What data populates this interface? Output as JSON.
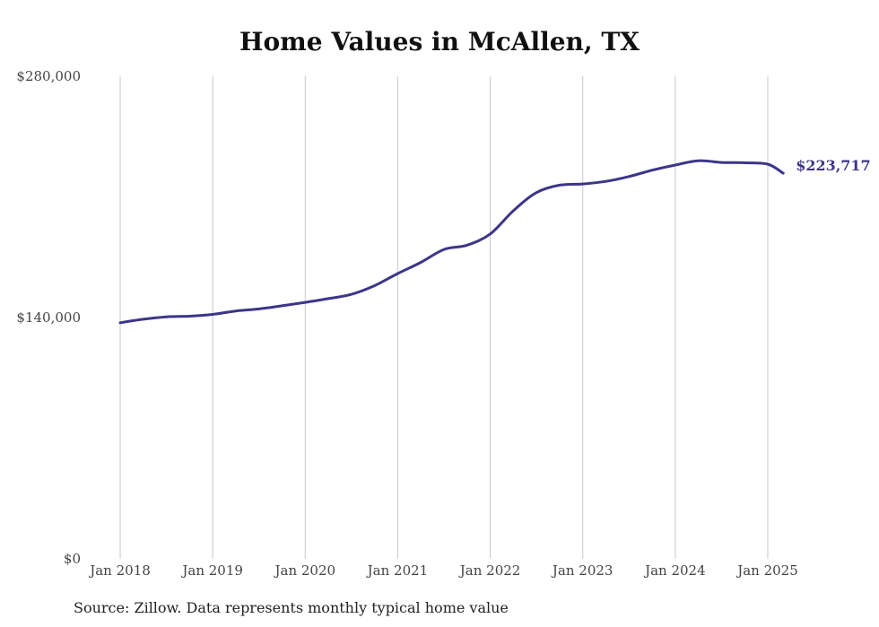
{
  "chart_data": {
    "type": "line",
    "title": "Home Values in McAllen, TX",
    "xlabel": "",
    "ylabel": "",
    "ylim": [
      0,
      280000
    ],
    "y_ticks": [
      {
        "value": 0,
        "label": "$0"
      },
      {
        "value": 140000,
        "label": "$140,000"
      },
      {
        "value": 280000,
        "label": "$280,000"
      }
    ],
    "x_ticks": [
      {
        "value": "2018-01",
        "label": "Jan 2018"
      },
      {
        "value": "2019-01",
        "label": "Jan 2019"
      },
      {
        "value": "2020-01",
        "label": "Jan 2020"
      },
      {
        "value": "2021-01",
        "label": "Jan 2021"
      },
      {
        "value": "2022-01",
        "label": "Jan 2022"
      },
      {
        "value": "2023-01",
        "label": "Jan 2023"
      },
      {
        "value": "2024-01",
        "label": "Jan 2024"
      },
      {
        "value": "2025-01",
        "label": "Jan 2025"
      }
    ],
    "x_grid": true,
    "y_grid": false,
    "legend": "none",
    "line_color": "#3d3589",
    "end_label": "$223,717",
    "series": [
      {
        "color": "#3d3589",
        "points": [
          [
            "2018-01",
            137000
          ],
          [
            "2018-04",
            139000
          ],
          [
            "2018-07",
            140400
          ],
          [
            "2018-10",
            140800
          ],
          [
            "2019-01",
            141800
          ],
          [
            "2019-04",
            143800
          ],
          [
            "2019-07",
            145000
          ],
          [
            "2019-10",
            146800
          ],
          [
            "2020-01",
            148800
          ],
          [
            "2020-04",
            151000
          ],
          [
            "2020-07",
            153500
          ],
          [
            "2020-10",
            158500
          ],
          [
            "2021-01",
            165500
          ],
          [
            "2021-04",
            172000
          ],
          [
            "2021-07",
            179500
          ],
          [
            "2021-10",
            182000
          ],
          [
            "2022-01",
            188500
          ],
          [
            "2022-04",
            202000
          ],
          [
            "2022-07",
            212500
          ],
          [
            "2022-10",
            216800
          ],
          [
            "2023-01",
            217500
          ],
          [
            "2023-04",
            219000
          ],
          [
            "2023-07",
            221800
          ],
          [
            "2023-10",
            225500
          ],
          [
            "2024-01",
            228500
          ],
          [
            "2024-04",
            231000
          ],
          [
            "2024-07",
            230000
          ],
          [
            "2024-10",
            229800
          ],
          [
            "2025-01",
            229000
          ],
          [
            "2025-03",
            223717
          ]
        ]
      }
    ]
  },
  "source_note": "Source: Zillow. Data represents monthly typical home value"
}
